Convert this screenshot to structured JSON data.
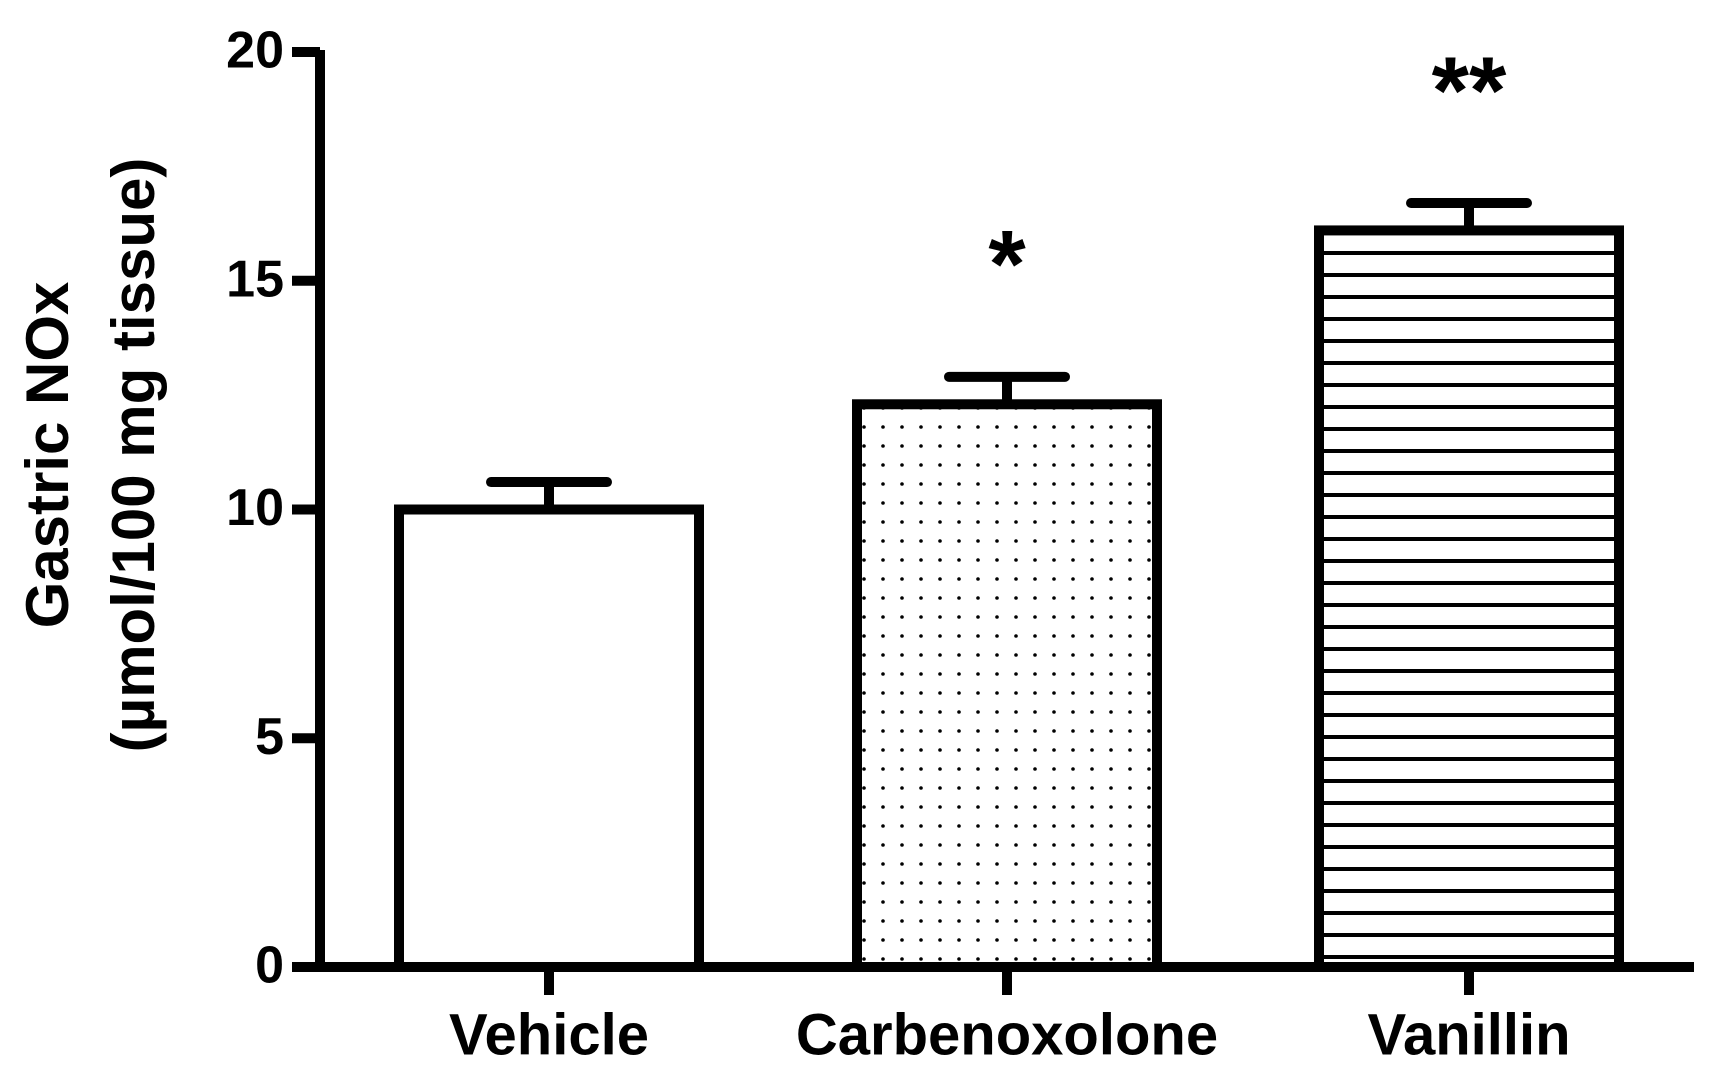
{
  "chart_data": {
    "type": "bar",
    "ylabel": [
      "Gastric NOx",
      "(µmol/100 mg tissue)"
    ],
    "categories": [
      "Vehicle",
      "Carbenoxolone",
      "Vanillin"
    ],
    "values": [
      10.0,
      12.3,
      16.1
    ],
    "errors": [
      0.6,
      0.6,
      0.6
    ],
    "patterns": [
      "none",
      "dots",
      "hlines"
    ],
    "color": "#000000",
    "annotations": [
      {
        "text": "*",
        "category": "Carbenoxolone"
      },
      {
        "text": "**",
        "category": "Vanillin"
      }
    ],
    "ylim": [
      0,
      20
    ],
    "yticks": [
      0,
      5,
      10,
      15,
      20
    ],
    "grid": false
  }
}
